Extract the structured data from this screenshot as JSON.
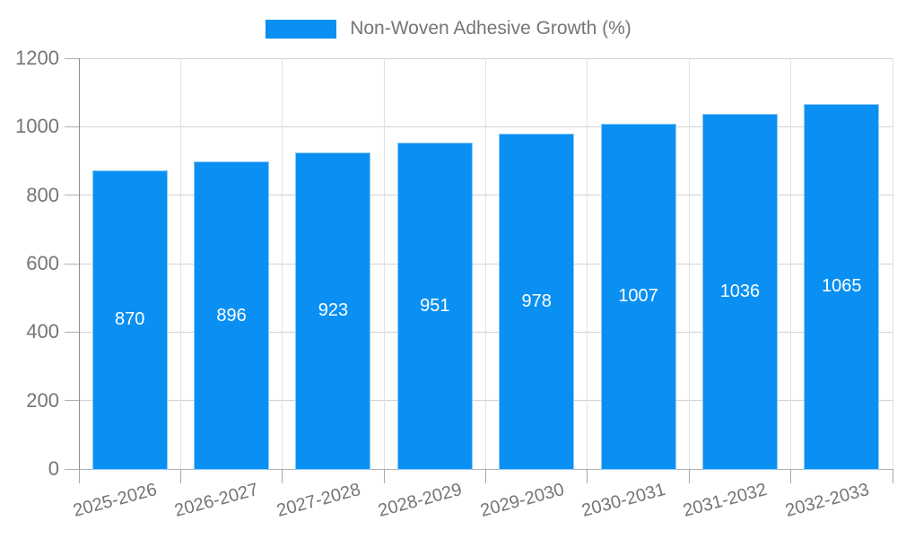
{
  "chart_data": {
    "type": "bar",
    "title": "Non-Woven Adhesive Growth (%)",
    "categories": [
      "2025-2026",
      "2026-2027",
      "2027-2028",
      "2028-2029",
      "2029-2030",
      "2030-2031",
      "2031-2032",
      "2032-2033"
    ],
    "values": [
      870,
      896,
      923,
      951,
      978,
      1007,
      1036,
      1065
    ],
    "value_labels": [
      "870",
      "896",
      "923",
      "951",
      "978",
      "1007",
      "1036",
      "1065"
    ],
    "xlabel": "",
    "ylabel": "",
    "ylim": [
      0,
      1200
    ],
    "yticks": [
      0,
      200,
      400,
      600,
      800,
      1000,
      1200
    ],
    "ytick_labels": [
      "0",
      "200",
      "400",
      "600",
      "800",
      "1000",
      "1200"
    ],
    "grid": "on",
    "legend_position": "top-center",
    "colors": {
      "bar": "#0a90f2",
      "bar_edge": "#8ec9f8",
      "axis_text": "#757575",
      "value_text": "#ffffff",
      "gridline": "#d2d2d2",
      "baseline": "#b0b0b0",
      "axis_line": "#8f8f8f"
    }
  }
}
